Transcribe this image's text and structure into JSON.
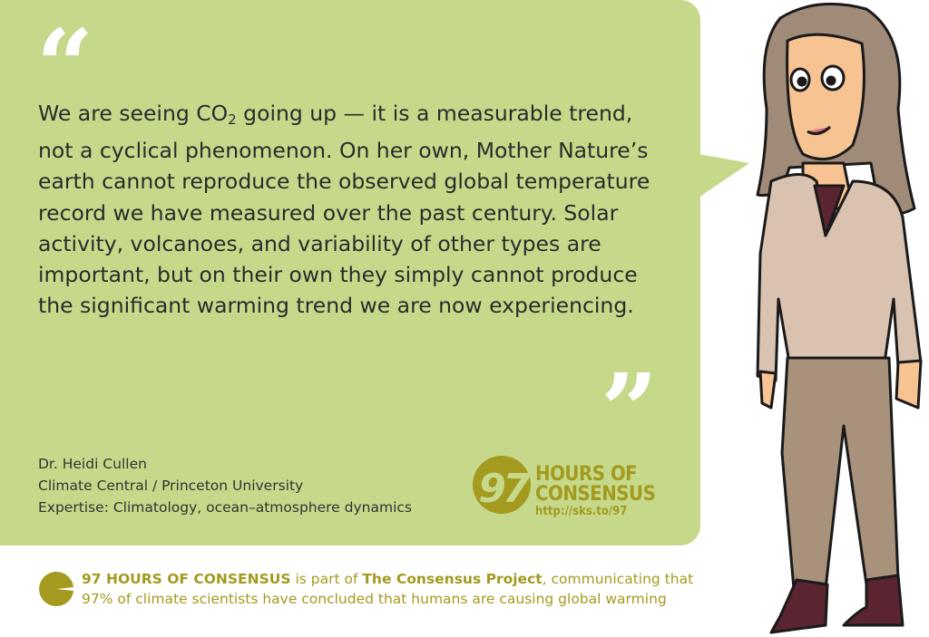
{
  "quote": {
    "open_mark": "“",
    "close_mark": "”",
    "text_before_sub": "We are seeing CO",
    "subscript": "2",
    "text_after_sub": " going up — it is a measurable trend, not a cyclical phenomenon. On her own, Mother Nature’s earth cannot reproduce the observed global temperature record we have measured over the past century. Solar activity, volcanoes, and variability of other types are important, but on their own they simply cannot produce the significant warming trend we are now experiencing."
  },
  "attribution": {
    "name": "Dr. Heidi Cullen",
    "affiliation": "Climate Central / Princeton University",
    "expertise": "Expertise: Climatology, ocean–atmosphere dynamics"
  },
  "logo": {
    "number": "97",
    "line1": "HOURS OF",
    "line2": "CONSENSUS",
    "url": "http://sks.to/97"
  },
  "footer": {
    "brand": "97 HOURS OF CONSENSUS",
    "part1": " is part of ",
    "project": "The Consensus Project",
    "part2": ", communicating that",
    "line2": "97% of climate scientists have concluded that humans are causing global warming"
  },
  "colors": {
    "bubble": "#c6d98a",
    "accent": "#a39a1f",
    "text": "#2b2b2b"
  }
}
